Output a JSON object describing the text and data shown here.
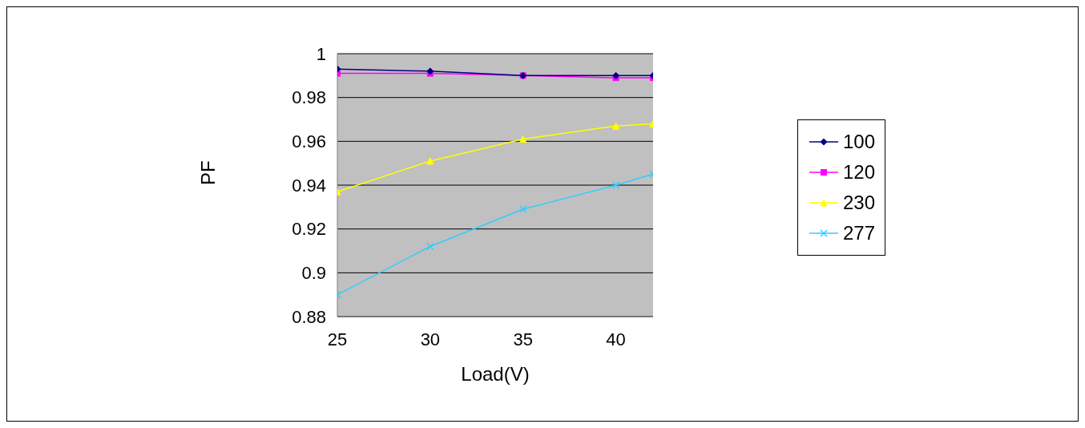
{
  "chart_data": {
    "type": "line",
    "xlabel": "Load(V)",
    "ylabel": "PF",
    "x": [
      25,
      30,
      35,
      40,
      42
    ],
    "series": [
      {
        "name": "100",
        "color": "#000080",
        "marker": "diamond",
        "values": [
          0.993,
          0.992,
          0.99,
          0.99,
          0.99
        ]
      },
      {
        "name": "120",
        "color": "#ff00ff",
        "marker": "square",
        "values": [
          0.991,
          0.991,
          0.99,
          0.989,
          0.989
        ]
      },
      {
        "name": "230",
        "color": "#ffff00",
        "marker": "triangle",
        "values": [
          0.937,
          0.951,
          0.961,
          0.967,
          0.968
        ]
      },
      {
        "name": "277",
        "color": "#33ccff",
        "marker": "cross",
        "values": [
          0.89,
          0.912,
          0.929,
          0.94,
          0.945
        ]
      }
    ],
    "xlim": [
      25,
      42
    ],
    "xticks": [
      25,
      30,
      35,
      40
    ],
    "ylim": [
      0.88,
      1
    ],
    "yticks": [
      0.88,
      0.9,
      0.92,
      0.94,
      0.96,
      0.98,
      1
    ],
    "grid": "y",
    "legend": "right",
    "line_style": "solid"
  }
}
